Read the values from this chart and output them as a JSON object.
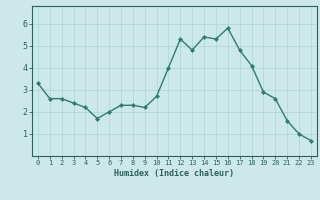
{
  "x": [
    0,
    1,
    2,
    3,
    4,
    5,
    6,
    7,
    8,
    9,
    10,
    11,
    12,
    13,
    14,
    15,
    16,
    17,
    18,
    19,
    20,
    21,
    22,
    23
  ],
  "y": [
    3.3,
    2.6,
    2.6,
    2.4,
    2.2,
    1.7,
    2.0,
    2.3,
    2.3,
    2.2,
    2.7,
    4.0,
    5.3,
    4.8,
    5.4,
    5.3,
    5.8,
    4.8,
    4.1,
    2.9,
    2.6,
    1.6,
    1.0,
    0.7
  ],
  "xlabel": "Humidex (Indice chaleur)",
  "line_color": "#2e7d6e",
  "marker": "D",
  "marker_size": 2.0,
  "bg_color": "#cce8e8",
  "grid_color": "#aad4d4",
  "axis_color": "#2e6060",
  "tick_label_color": "#2e6060",
  "xlim": [
    -0.5,
    23.5
  ],
  "ylim": [
    0,
    6.8
  ],
  "yticks": [
    1,
    2,
    3,
    4,
    5,
    6
  ],
  "xticks": [
    0,
    1,
    2,
    3,
    4,
    5,
    6,
    7,
    8,
    9,
    10,
    11,
    12,
    13,
    14,
    15,
    16,
    17,
    18,
    19,
    20,
    21,
    22,
    23
  ],
  "xlabel_fontsize": 6.0,
  "xtick_fontsize": 5.0,
  "ytick_fontsize": 6.0,
  "linewidth": 1.0
}
